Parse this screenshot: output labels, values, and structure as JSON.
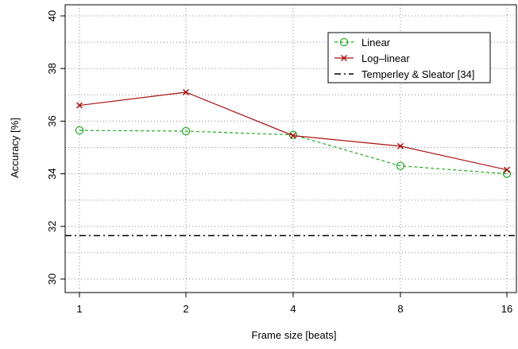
{
  "chart_data": {
    "type": "line",
    "title": "",
    "xlabel": "Frame size [beats]",
    "ylabel": "Accuracy [%]",
    "categories": [
      "1",
      "2",
      "4",
      "8",
      "16"
    ],
    "ylim": [
      30,
      40
    ],
    "yticks": [
      30,
      32,
      34,
      36,
      38,
      40
    ],
    "grid": true,
    "legend_position": "top-right",
    "series": [
      {
        "name": "Linear",
        "values": [
          35.65,
          35.62,
          35.48,
          34.3,
          34.0
        ],
        "color": "#22aa22",
        "line": "dashed",
        "marker": "circle"
      },
      {
        "name": "Log–linear",
        "values": [
          36.6,
          37.1,
          35.45,
          35.05,
          34.15
        ],
        "color": "#aa1111",
        "line": "solid",
        "marker": "x"
      }
    ],
    "reference_lines": [
      {
        "name": "Temperley & Sleator [34]",
        "value": 31.65,
        "color": "#000000",
        "line": "dashdot"
      }
    ]
  }
}
